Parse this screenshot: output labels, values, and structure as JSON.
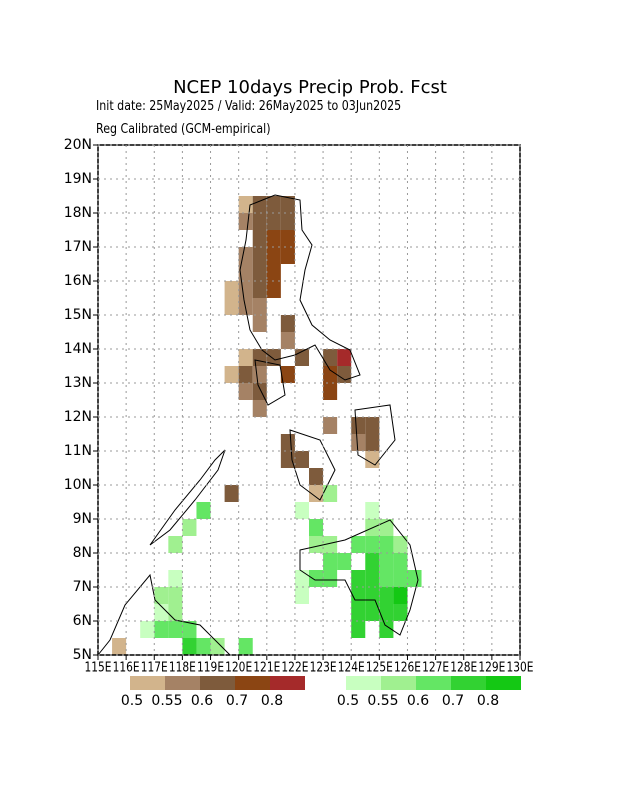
{
  "chart_data": {
    "type": "map",
    "title": "NCEP 10days Precip Prob. Fcst",
    "subtitle": [
      "Init date: 25May2025 / Valid: 26May2025 to 03Jun2025",
      "Reg Calibrated (GCM-empirical)"
    ],
    "xlim": [
      115,
      130
    ],
    "ylim": [
      5,
      20
    ],
    "grid": true,
    "xticks": [
      {
        "value": 115,
        "label": "115E"
      },
      {
        "value": 116,
        "label": "116E"
      },
      {
        "value": 117,
        "label": "117E"
      },
      {
        "value": 118,
        "label": "118E"
      },
      {
        "value": 119,
        "label": "119E"
      },
      {
        "value": 120,
        "label": "120E"
      },
      {
        "value": 121,
        "label": "121E"
      },
      {
        "value": 122,
        "label": "122E"
      },
      {
        "value": 123,
        "label": "123E"
      },
      {
        "value": 124,
        "label": "124E"
      },
      {
        "value": 125,
        "label": "125E"
      },
      {
        "value": 126,
        "label": "126E"
      },
      {
        "value": 127,
        "label": "127E"
      },
      {
        "value": 128,
        "label": "128E"
      },
      {
        "value": 129,
        "label": "129E"
      },
      {
        "value": 130,
        "label": "130E"
      }
    ],
    "yticks": [
      {
        "value": 5,
        "label": "5N"
      },
      {
        "value": 6,
        "label": "6N"
      },
      {
        "value": 7,
        "label": "7N"
      },
      {
        "value": 8,
        "label": "8N"
      },
      {
        "value": 9,
        "label": "9N"
      },
      {
        "value": 10,
        "label": "10N"
      },
      {
        "value": 11,
        "label": "11N"
      },
      {
        "value": 12,
        "label": "12N"
      },
      {
        "value": 13,
        "label": "13N"
      },
      {
        "value": 14,
        "label": "14N"
      },
      {
        "value": 15,
        "label": "15N"
      },
      {
        "value": 16,
        "label": "16N"
      },
      {
        "value": 17,
        "label": "17N"
      },
      {
        "value": 18,
        "label": "18N"
      },
      {
        "value": 19,
        "label": "19N"
      },
      {
        "value": 20,
        "label": "20N"
      }
    ],
    "series": [
      {
        "levels": [
          0.5,
          0.55,
          0.6,
          0.7,
          0.8
        ],
        "colors": [
          "#d2b48c",
          "#a58265",
          "#7e5b3c",
          "#8b4513",
          "#a52a2a"
        ],
        "x": [
          120.25,
          120.75,
          121.25,
          121.75,
          120.25,
          120.75,
          121.25,
          121.75,
          120.75,
          121.25,
          121.75,
          120.25,
          120.75,
          121.25,
          121.75,
          120.25,
          120.75,
          121.25,
          119.75,
          120.25,
          120.75,
          121.25,
          119.75,
          120.25,
          120.75,
          120.75,
          121.75,
          121.75,
          120.25,
          120.75,
          121.25,
          122.25,
          119.75,
          120.25,
          120.75,
          121.75,
          120.25,
          120.75,
          120.75,
          123.25,
          123.75,
          123.25,
          123.75,
          123.25,
          123.25,
          124.25,
          124.75,
          124.75,
          124.25,
          124.75,
          121.75,
          121.75,
          122.25,
          122.75,
          122.75,
          119.75,
          115.75
        ],
        "y": [
          18.25,
          18.25,
          18.25,
          18.25,
          17.75,
          17.75,
          17.75,
          17.75,
          17.25,
          17.25,
          17.25,
          16.75,
          16.75,
          16.75,
          16.75,
          16.25,
          16.25,
          16.25,
          15.75,
          15.75,
          15.75,
          15.75,
          15.25,
          15.25,
          15.25,
          14.75,
          14.75,
          14.25,
          13.75,
          13.75,
          13.75,
          13.75,
          13.25,
          13.25,
          13.25,
          13.25,
          12.75,
          12.75,
          12.25,
          13.25,
          13.25,
          12.75,
          13.75,
          13.75,
          11.75,
          11.75,
          11.75,
          11.25,
          11.25,
          10.75,
          11.25,
          10.75,
          10.75,
          10.25,
          9.75,
          9.75,
          5.25
        ],
        "values": [
          0.5,
          0.6,
          0.6,
          0.6,
          0.55,
          0.6,
          0.6,
          0.6,
          0.6,
          0.7,
          0.7,
          0.55,
          0.6,
          0.7,
          0.7,
          0.55,
          0.6,
          0.7,
          0.5,
          0.55,
          0.6,
          0.7,
          0.5,
          0.55,
          0.55,
          0.55,
          0.6,
          0.55,
          0.5,
          0.6,
          0.6,
          0.6,
          0.5,
          0.6,
          0.55,
          0.7,
          0.55,
          0.6,
          0.55,
          0.7,
          0.6,
          0.7,
          0.8,
          0.6,
          0.55,
          0.6,
          0.6,
          0.6,
          0.55,
          0.5,
          0.6,
          0.6,
          0.6,
          0.6,
          0.5,
          0.6,
          0.5
        ]
      },
      {
        "levels": [
          0.5,
          0.55,
          0.6,
          0.7,
          0.8
        ],
        "colors": [
          "#c8ffc0",
          "#a0f090",
          "#64e664",
          "#32d232",
          "#14c814"
        ],
        "x": [
          124.75,
          125.25,
          122.75,
          123.25,
          124.25,
          124.75,
          125.25,
          125.75,
          123.25,
          123.75,
          122.75,
          123.25,
          124.25,
          124.75,
          125.25,
          124.25,
          124.75,
          125.25,
          125.75,
          124.25,
          124.75,
          125.25,
          125.25,
          124.25,
          122.25,
          122.25,
          125.75,
          126.25,
          125.75,
          125.25,
          124.75,
          125.75,
          117.25,
          117.75,
          117.25,
          117.75,
          117.75,
          117.25,
          117.75,
          118.25,
          116.75,
          118.75,
          118.25,
          119.25,
          120.25,
          118.75,
          118.25,
          117.75,
          122.25,
          122.75,
          123.25,
          124.75
        ],
        "y": [
          8.75,
          8.75,
          8.25,
          8.25,
          8.25,
          7.75,
          7.75,
          7.75,
          7.75,
          7.75,
          7.25,
          7.25,
          7.25,
          7.25,
          7.25,
          6.75,
          6.75,
          6.75,
          6.75,
          6.25,
          6.25,
          6.25,
          5.75,
          5.75,
          7.25,
          6.75,
          7.25,
          7.25,
          8.25,
          8.25,
          8.25,
          6.25,
          6.25,
          6.25,
          6.75,
          6.75,
          7.25,
          5.75,
          5.75,
          5.75,
          5.75,
          5.25,
          5.25,
          5.25,
          5.25,
          9.25,
          8.75,
          8.25,
          9.25,
          8.75,
          9.75,
          9.25
        ],
        "values": [
          0.55,
          0.55,
          0.55,
          0.55,
          0.6,
          0.7,
          0.6,
          0.6,
          0.6,
          0.6,
          0.6,
          0.6,
          0.7,
          0.7,
          0.6,
          0.7,
          0.7,
          0.7,
          0.8,
          0.7,
          0.7,
          0.7,
          0.7,
          0.7,
          0.5,
          0.5,
          0.6,
          0.6,
          0.55,
          0.6,
          0.6,
          0.7,
          0.5,
          0.55,
          0.55,
          0.55,
          0.5,
          0.6,
          0.6,
          0.6,
          0.5,
          0.6,
          0.7,
          0.55,
          0.6,
          0.6,
          0.55,
          0.55,
          0.5,
          0.6,
          0.55,
          0.5
        ]
      }
    ]
  }
}
